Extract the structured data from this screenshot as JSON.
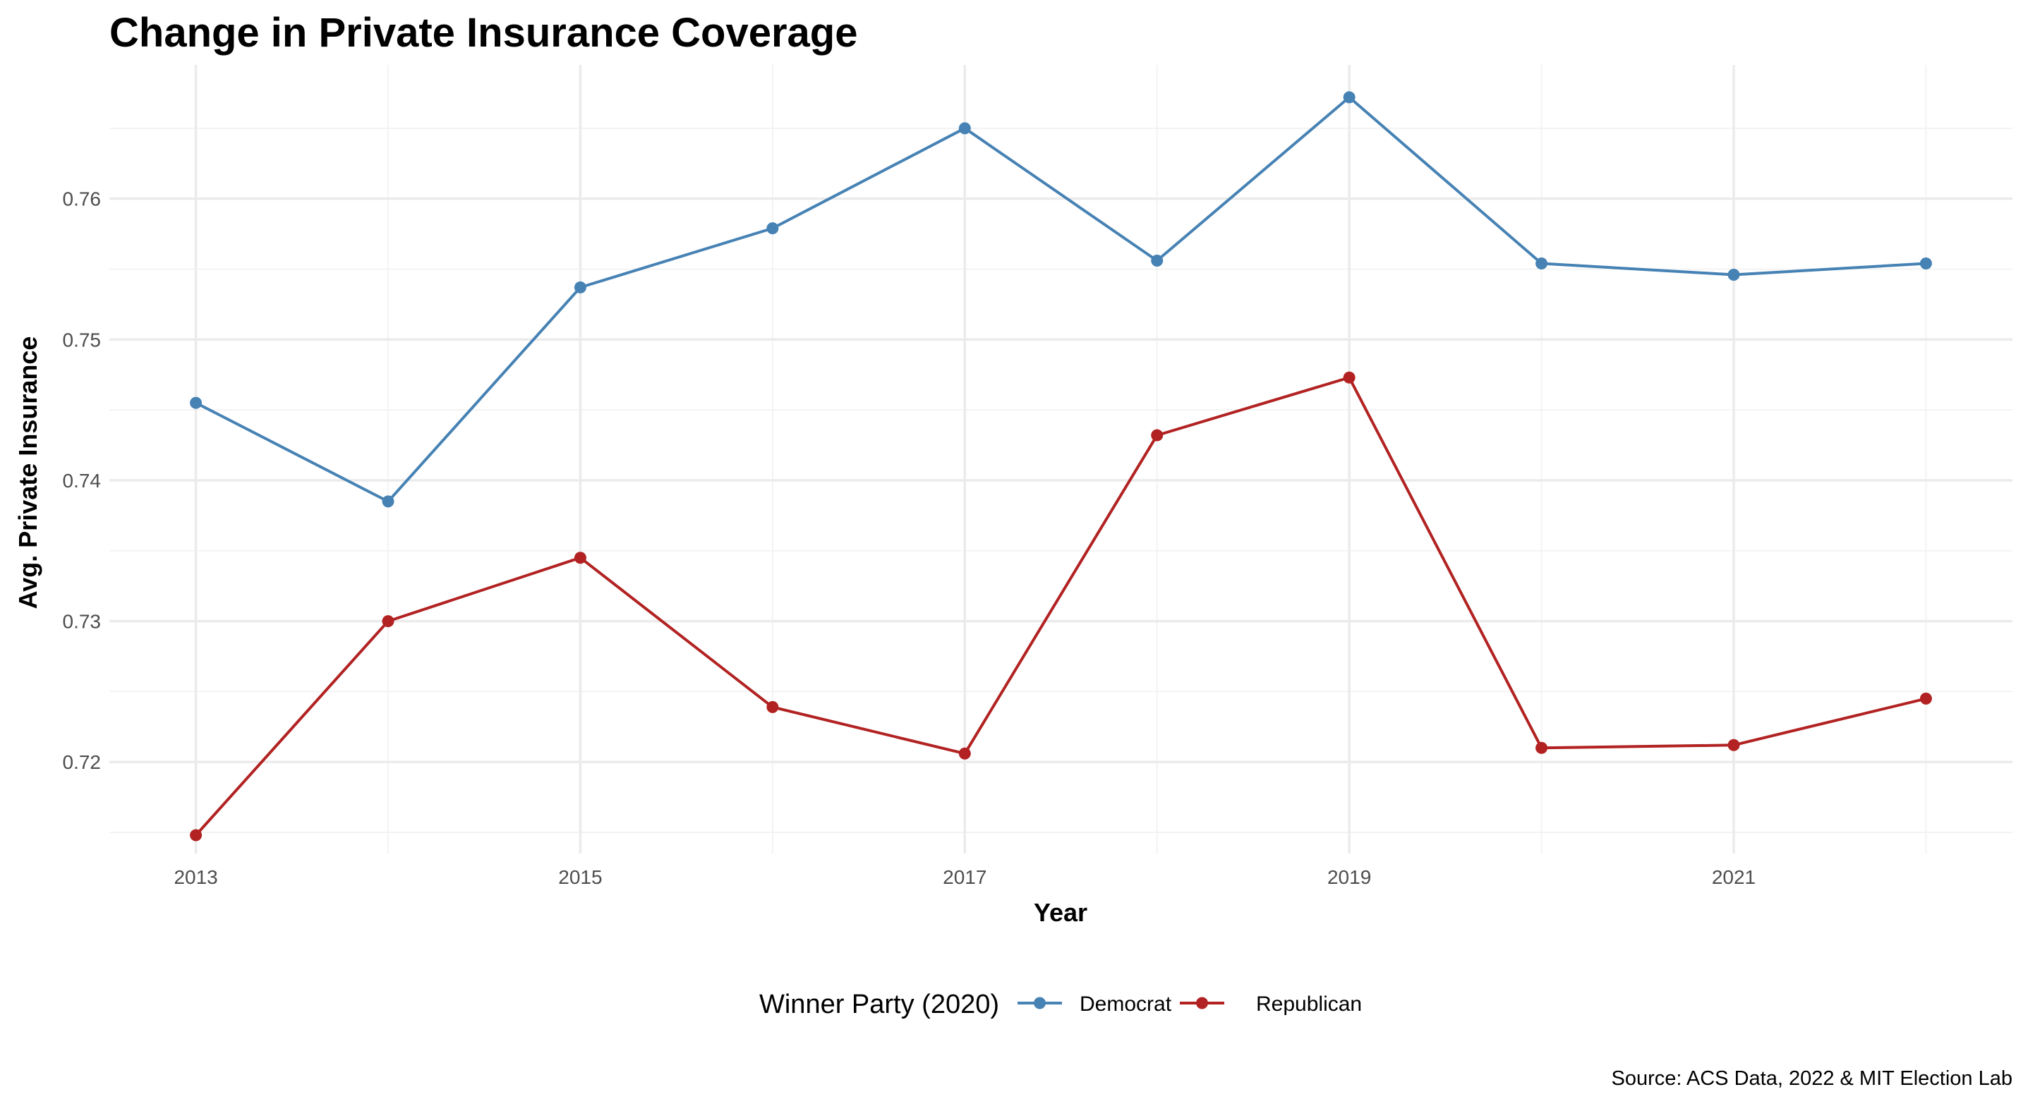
{
  "chart_data": {
    "type": "line",
    "title": "Change in Private Insurance Coverage",
    "xlabel": "Year",
    "ylabel": "Avg. Private Insurance",
    "x": [
      2013,
      2014,
      2015,
      2016,
      2017,
      2018,
      2019,
      2020,
      2021,
      2022
    ],
    "x_ticks": [
      2013,
      2015,
      2017,
      2019,
      2021
    ],
    "y_ticks": [
      0.72,
      0.73,
      0.74,
      0.75,
      0.76
    ],
    "y_tick_labels": [
      "0.72",
      "0.73",
      "0.74",
      "0.75",
      "0.76"
    ],
    "x_tick_labels": [
      "2013",
      "2015",
      "2017",
      "2019",
      "2021"
    ],
    "xlim": [
      2012.55,
      2022.45
    ],
    "ylim": [
      0.7135,
      0.7695
    ],
    "grid": true,
    "legend": {
      "title": "Winner Party (2020)",
      "placement": "bottom"
    },
    "series": [
      {
        "name": "Democrat",
        "color": "#4682B4",
        "values": [
          0.7455,
          0.7385,
          0.7537,
          0.7579,
          0.765,
          0.7556,
          0.7672,
          0.7554,
          0.7546,
          0.7554
        ]
      },
      {
        "name": "Republican",
        "color": "#B22222",
        "values": [
          0.7148,
          0.73,
          0.7345,
          0.7239,
          0.7206,
          0.7432,
          0.7473,
          0.721,
          0.7212,
          0.7245
        ]
      }
    ],
    "caption": "Source: ACS Data, 2022 & MIT Election Lab"
  }
}
